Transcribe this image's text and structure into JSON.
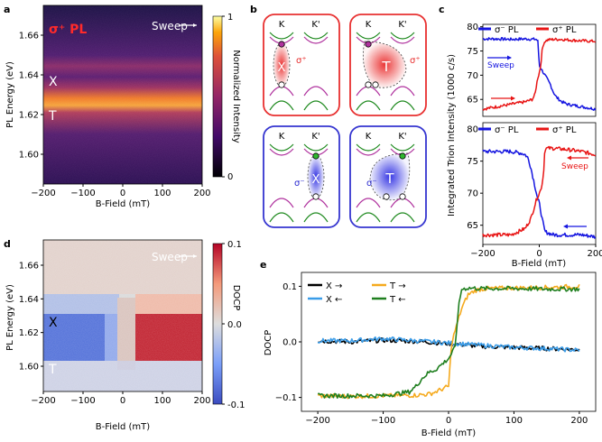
{
  "panel_labels": {
    "a": "a",
    "b": "b",
    "c": "c",
    "d": "d",
    "e": "e"
  },
  "chart_data": [
    {
      "id": "a",
      "type": "heatmap",
      "title": "σ⁺ PL",
      "annotation": "Sweep",
      "xlabel": "B-Field (mT)",
      "ylabel": "PL Energy (eV)",
      "xlim": [
        -200,
        200
      ],
      "ylim": [
        1.585,
        1.675
      ],
      "xticks": [
        -200,
        -100,
        0,
        100,
        200
      ],
      "yticks": [
        1.6,
        1.62,
        1.64,
        1.66
      ],
      "xticklabels": [
        "−200",
        "−100",
        "0",
        "100",
        "200"
      ],
      "yticklabels": [
        "1.60",
        "1.62",
        "1.64",
        "1.66"
      ],
      "peaks": [
        {
          "label": "X",
          "energy": 1.641
        },
        {
          "label": "T",
          "energy": 1.622
        }
      ],
      "colorbar": {
        "label": "Normalized Intensity",
        "min": 0,
        "max": 1,
        "ticklabels": [
          "0",
          "1"
        ]
      }
    },
    {
      "id": "c",
      "type": "line",
      "ylabel": "Integrated Trion Intensity (1000 c/s)",
      "xlabel": "B-Field (mT)",
      "xlim": [
        -200,
        200
      ],
      "ylim": [
        62,
        81
      ],
      "xticks": [
        -200,
        0,
        200
      ],
      "yticks": [
        65,
        70,
        75,
        80
      ],
      "xticklabels": [
        "−200",
        "0",
        "200"
      ],
      "yticklabels": [
        "65",
        "70",
        "75",
        "80"
      ],
      "legend": [
        "σ⁻ PL",
        "σ⁺ PL"
      ],
      "subplots": [
        {
          "sweep_label": "Sweep",
          "sweep_direction": "forward",
          "series": [
            {
              "name": "σ⁻ PL",
              "color": "#1515e0",
              "x": [
                -200,
                -150,
                -100,
                -50,
                -10,
                -5,
                0,
                5,
                10,
                20,
                30,
                40,
                50,
                60,
                80,
                100,
                150,
                200
              ],
              "y": [
                77.5,
                77.5,
                77.4,
                77.5,
                77.4,
                77,
                72,
                71.5,
                71,
                70,
                69,
                68,
                66.5,
                65.5,
                64.5,
                64,
                63.5,
                63
              ]
            },
            {
              "name": "σ⁺ PL",
              "color": "#e81515",
              "x": [
                -200,
                -150,
                -100,
                -50,
                -25,
                -15,
                -10,
                -5,
                0,
                5,
                10,
                15,
                20,
                30,
                50,
                80,
                100,
                150,
                200
              ],
              "y": [
                63,
                63.5,
                64,
                64.5,
                65,
                66,
                68,
                69.5,
                70.5,
                72,
                75,
                76.5,
                77,
                77.3,
                77.4,
                77.4,
                77.3,
                77.1,
                77
              ]
            }
          ]
        },
        {
          "sweep_label": "Sweep",
          "sweep_direction": "backward",
          "series": [
            {
              "name": "σ⁻ PL",
              "color": "#1515e0",
              "x": [
                -200,
                -150,
                -100,
                -60,
                -50,
                -40,
                -30,
                -20,
                -15,
                -10,
                -5,
                0,
                10,
                20,
                30,
                50,
                100,
                150,
                200
              ],
              "y": [
                76.5,
                76.5,
                76.5,
                76.2,
                76,
                75.5,
                74,
                72,
                71,
                70,
                69,
                68.5,
                66,
                64,
                63.8,
                63.5,
                63.5,
                63.5,
                63.2
              ]
            },
            {
              "name": "σ⁺ PL",
              "color": "#e81515",
              "x": [
                -200,
                -150,
                -100,
                -50,
                -30,
                -20,
                -10,
                0,
                5,
                10,
                15,
                20,
                50,
                100,
                150,
                200
              ],
              "y": [
                63.5,
                63.5,
                63.5,
                64.5,
                66,
                67.5,
                69,
                70,
                70.5,
                71.5,
                73,
                77,
                77,
                76.8,
                76.5,
                76
              ]
            }
          ]
        }
      ]
    },
    {
      "id": "d",
      "type": "heatmap",
      "annotation": "Sweep",
      "xlabel": "B-Field (mT)",
      "ylabel": "PL Energy (eV)",
      "xlim": [
        -200,
        200
      ],
      "ylim": [
        1.585,
        1.675
      ],
      "xticks": [
        -200,
        -100,
        0,
        100,
        200
      ],
      "yticks": [
        1.6,
        1.62,
        1.64,
        1.66
      ],
      "xticklabels": [
        "−200",
        "−100",
        "0",
        "100",
        "200"
      ],
      "yticklabels": [
        "1.60",
        "1.62",
        "1.64",
        "1.66"
      ],
      "peaks": [
        {
          "label": "X",
          "energy": 1.641
        },
        {
          "label": "T",
          "energy": 1.622
        }
      ],
      "colorbar": {
        "label": "DOCP",
        "min": -0.1,
        "max": 0.1,
        "ticklabels": [
          "-0.1",
          "0.0",
          "0.1"
        ]
      }
    },
    {
      "id": "e",
      "type": "line",
      "xlabel": "B-Field (mT)",
      "ylabel": "DOCP",
      "xlim": [
        -225,
        225
      ],
      "ylim": [
        -0.125,
        0.125
      ],
      "xticks": [
        -200,
        -100,
        0,
        100,
        200
      ],
      "yticks": [
        -0.1,
        0.0,
        0.1
      ],
      "xticklabels": [
        "−200",
        "−100",
        "0",
        "100",
        "200"
      ],
      "yticklabels": [
        "−0.1",
        "0.0",
        "0.1"
      ],
      "series": [
        {
          "name": "X →",
          "color": "#000000",
          "x": [
            -200,
            -150,
            -100,
            -50,
            0,
            50,
            100,
            150,
            200
          ],
          "y": [
            0.002,
            0.0,
            0.003,
            0.001,
            -0.003,
            -0.008,
            -0.01,
            -0.012,
            -0.014
          ]
        },
        {
          "name": "X ←",
          "color": "#3a9ce8",
          "x": [
            -200,
            -150,
            -100,
            -50,
            0,
            50,
            100,
            150,
            200
          ],
          "y": [
            0.002,
            0.002,
            0.006,
            0.002,
            -0.002,
            -0.006,
            -0.01,
            -0.012,
            -0.015
          ]
        },
        {
          "name": "T →",
          "color": "#f5aa1e",
          "x": [
            -200,
            -150,
            -100,
            -50,
            -30,
            -20,
            -10,
            0,
            5,
            10,
            20,
            30,
            40,
            50,
            60,
            100,
            150,
            200
          ],
          "y": [
            -0.097,
            -0.098,
            -0.097,
            -0.096,
            -0.094,
            -0.09,
            -0.085,
            -0.08,
            0.0,
            0.02,
            0.06,
            0.085,
            0.092,
            0.095,
            0.096,
            0.097,
            0.098,
            0.1
          ]
        },
        {
          "name": "T ←",
          "color": "#1f7f1f",
          "x": [
            -200,
            -150,
            -100,
            -60,
            -50,
            -40,
            -30,
            -20,
            -10,
            0,
            10,
            15,
            20,
            30,
            50,
            100,
            150,
            200
          ],
          "y": [
            -0.097,
            -0.097,
            -0.097,
            -0.09,
            -0.08,
            -0.065,
            -0.055,
            -0.05,
            -0.04,
            -0.03,
            -0.01,
            0.06,
            0.095,
            0.097,
            0.096,
            0.096,
            0.095,
            0.095
          ]
        }
      ],
      "legend": [
        "X →",
        "X ←",
        "T →",
        "T ←"
      ]
    }
  ],
  "schematic_b": {
    "valley_labels": [
      "K",
      "K'"
    ],
    "cells": [
      {
        "id": "b1",
        "quasiparticle": "X",
        "polarization": "σ⁺",
        "frame": "#e83030"
      },
      {
        "id": "b2",
        "quasiparticle": "T",
        "polarization": "σ⁺",
        "frame": "#e83030"
      },
      {
        "id": "b3",
        "quasiparticle": "X",
        "polarization": "σ⁻",
        "frame": "#3535d0"
      },
      {
        "id": "b4",
        "quasiparticle": "T",
        "polarization": "σ⁻",
        "frame": "#3535d0"
      }
    ]
  }
}
